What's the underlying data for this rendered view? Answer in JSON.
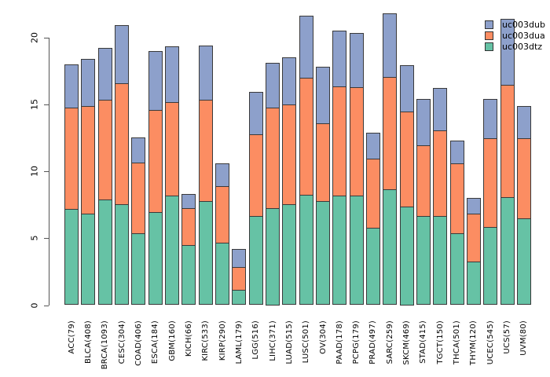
{
  "chart_data": {
    "type": "bar",
    "stacked": true,
    "title": "",
    "xlabel": "",
    "ylabel": "",
    "categories": [
      "ACC(79)",
      "BLCA(408)",
      "BRCA(1093)",
      "CESC(304)",
      "COAD(406)",
      "ESCA(184)",
      "GBM(160)",
      "KICH(66)",
      "KIRC(533)",
      "KIRP(290)",
      "LAML(179)",
      "LGG(516)",
      "LIHC(371)",
      "LUAD(515)",
      "LUSC(501)",
      "OV(304)",
      "PAAD(178)",
      "PCPG(179)",
      "PRAD(497)",
      "SARC(259)",
      "SKCM(469)",
      "STAD(415)",
      "TGCT(150)",
      "THCA(501)",
      "THYM(120)",
      "UCEC(545)",
      "UCS(57)",
      "UVM(80)"
    ],
    "series": [
      {
        "name": "uc003dtz",
        "color": "#66C2A5",
        "values": [
          7.1,
          6.8,
          7.8,
          7.5,
          5.3,
          6.9,
          8.1,
          4.4,
          7.7,
          4.6,
          1.1,
          6.6,
          7.2,
          7.5,
          8.2,
          7.7,
          8.1,
          8.1,
          5.7,
          8.6,
          7.3,
          6.6,
          6.6,
          5.3,
          3.2,
          5.8,
          8.0,
          6.4
        ]
      },
      {
        "name": "uc003dua",
        "color": "#FC8D62",
        "values": [
          7.6,
          8.0,
          7.5,
          9.0,
          5.3,
          7.6,
          7.0,
          2.8,
          7.6,
          4.2,
          1.7,
          6.1,
          7.5,
          7.4,
          8.7,
          5.8,
          8.2,
          8.1,
          5.2,
          8.4,
          7.1,
          5.3,
          6.4,
          5.2,
          3.6,
          6.6,
          8.4,
          6.0
        ]
      },
      {
        "name": "uc003dub",
        "color": "#8DA0CB",
        "values": [
          3.3,
          3.6,
          3.9,
          4.4,
          1.9,
          4.5,
          4.2,
          1.1,
          4.1,
          1.8,
          1.4,
          3.2,
          3.4,
          3.6,
          4.7,
          4.3,
          4.2,
          4.1,
          2.0,
          4.8,
          3.5,
          3.5,
          3.2,
          1.8,
          1.2,
          3.0,
          5.0,
          2.5
        ]
      }
    ],
    "totals": [
      18.0,
      18.4,
      19.2,
      20.9,
      12.5,
      19.0,
      19.3,
      8.3,
      19.4,
      10.6,
      4.2,
      15.9,
      18.1,
      18.5,
      21.6,
      17.8,
      20.5,
      20.3,
      12.9,
      21.8,
      17.9,
      15.4,
      16.2,
      12.3,
      8.0,
      15.4,
      21.4,
      14.9
    ],
    "ylim": [
      0,
      22
    ],
    "yticks": [
      0,
      5,
      10,
      15,
      20
    ],
    "grid": false,
    "legend": {
      "position": "top-right",
      "entries": [
        {
          "label": "uc003dub",
          "color": "#8DA0CB"
        },
        {
          "label": "uc003dua",
          "color": "#FC8D62"
        },
        {
          "label": "uc003dtz",
          "color": "#66C2A5"
        }
      ]
    },
    "colors": {
      "background": "#ffffff",
      "axis": "#555555",
      "bar_border": "#3a3a3a",
      "text": "#000000"
    }
  }
}
